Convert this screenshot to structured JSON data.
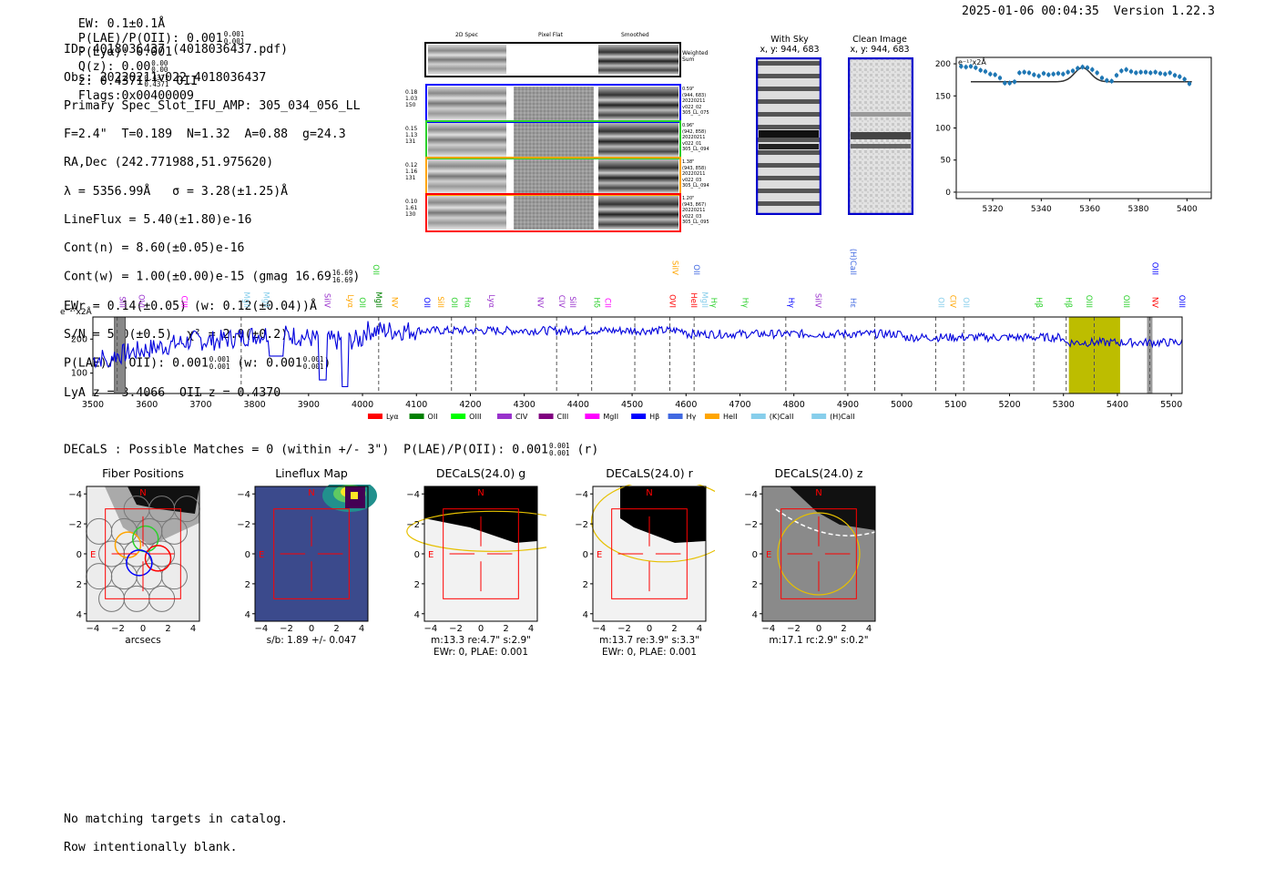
{
  "header": {
    "ew": "EW: 0.1±0.1Å",
    "plae_label": "P(LAE)/P(OII): 0.001",
    "plae_hi": "0.001",
    "plae_lo": "0.001",
    "plya": "P(Lyα): 0.001",
    "qz_label": "Q(z): 0.00",
    "qz_hi": "0.00",
    "qz_lo": "0.00",
    "z_label": "z: 0.4371",
    "z_hi": "0.4371",
    "z_lo": "0.4371",
    "z_line": "OII",
    "flags": "Flags:0x00400009",
    "datetime": "2025-01-06 00:04:35",
    "version": "Version 1.22.3"
  },
  "info": {
    "id": "ID: 4018036437 (4018036437.pdf)",
    "obs": "Obs: 20220211v022_4018036437",
    "primary": "Primary Spec_Slot_IFU_AMP: 305_034_056_LL",
    "params": "F=2.4\"  T=0.189  N=1.32  A=0.88  g=24.3",
    "radec": "RA,Dec (242.771988,51.975620)",
    "lambda": "λ = 5356.99Å   σ = 3.28(±1.25)Å",
    "lineflux": "LineFlux = 5.40(±1.80)e-16",
    "contn": "Cont(n) = 8.60(±0.05)e-16",
    "contw": "Cont(w) = 1.00(±0.00)e-15 (gmag 16.69",
    "contw_hi": "16.69",
    "contw_lo": "16.69",
    "ewr": "EWr = 0.14(±0.05) (w: 0.12(±0.04))Å",
    "sn": "S/N = 5.0(±0.5)  χ² = 2.0(±0.2)",
    "plae": "P(LAE)/P(OII): 0.001",
    "plae_hi": "0.001",
    "plae_lo": "0.001",
    "plae_w": "(w: 0.001",
    "plae_w_hi": "0.001",
    "plae_w_lo": "0.001",
    "lyaz": "LyA z = 3.4066  OII z = 0.4370"
  },
  "cutouts": {
    "col_2d": "2D Spec",
    "col_flat": "Pixel Flat",
    "col_smooth": "Smoothed",
    "weighted": "Weighted",
    "sum": "Sum",
    "rows": [
      {
        "left": [
          "0.18",
          "1.03",
          "150"
        ],
        "right": [
          "0.59\"",
          "(944, 683)",
          "20220211",
          "v022_02",
          "305_LL_075"
        ],
        "color": "#0000ff"
      },
      {
        "left": [
          "0.15",
          "1.13",
          "131"
        ],
        "right": [
          "0.96\"",
          "(942, 858)",
          "20220211",
          "v022_01",
          "305_LL_094"
        ],
        "color": "#2bd02b"
      },
      {
        "left": [
          "0.12",
          "1.16",
          "131"
        ],
        "right": [
          "1.38\"",
          "(943, 858)",
          "20220211",
          "v022_03",
          "305_LL_094"
        ],
        "color": "#ffa500"
      },
      {
        "left": [
          "0.10",
          "1.61",
          "130"
        ],
        "right": [
          "1.20\"",
          "(943, 867)",
          "20220211",
          "v022_03",
          "305_LL_095"
        ],
        "color": "#ff0000"
      }
    ]
  },
  "sky": {
    "with_sky": "With Sky",
    "with_sky_xy": "x, y: 944, 683",
    "clean": "Clean Image",
    "clean_xy": "x, y: 944, 683"
  },
  "zoom_chart": {
    "unit": "e⁻¹⁷x2Å",
    "xticks": [
      "5320",
      "5340",
      "5360",
      "5380",
      "5400"
    ],
    "yticks": [
      "200",
      "150",
      "100",
      "50",
      "0"
    ]
  },
  "spectrum": {
    "unit": "e⁻¹⁷x2Å",
    "xticks": [
      "3500",
      "3600",
      "3700",
      "3800",
      "3900",
      "4000",
      "4100",
      "4200",
      "4300",
      "4400",
      "4500",
      "4600",
      "4700",
      "4800",
      "4900",
      "5000",
      "5100",
      "5200",
      "5300",
      "5400",
      "5500"
    ],
    "yticks": [
      "200",
      "100"
    ],
    "legend": [
      {
        "label": "Lyα",
        "color": "#ff0000"
      },
      {
        "label": "OII",
        "color": "#008000"
      },
      {
        "label": "OIII",
        "color": "#00ff00"
      },
      {
        "label": "CIV",
        "color": "#9932cc"
      },
      {
        "label": "CIII",
        "color": "#800080"
      },
      {
        "label": "MgII",
        "color": "#ff00ff"
      },
      {
        "label": "Hβ",
        "color": "#0000ff"
      },
      {
        "label": "Hγ",
        "color": "#4169e1"
      },
      {
        "label": "HeII",
        "color": "#ffa500"
      },
      {
        "label": "(K)CaII",
        "color": "#87ceeb"
      },
      {
        "label": "(H)CaII",
        "color": "#87ceeb"
      }
    ],
    "line_labels": [
      {
        "t": "SiII",
        "w": 3545,
        "c": "#9932cc",
        "r": 1
      },
      {
        "t": "OVI",
        "w": 3580,
        "c": "#9932cc",
        "r": 1
      },
      {
        "t": "CIII",
        "w": 3660,
        "c": "#ff00ff",
        "r": 1
      },
      {
        "t": "MgII",
        "w": 3775,
        "c": "#87ceeb",
        "r": 1
      },
      {
        "t": "MgII",
        "w": 3812,
        "c": "#87ceeb",
        "r": 1
      },
      {
        "t": "SiIV",
        "w": 3925,
        "c": "#9932cc",
        "r": 1
      },
      {
        "t": "Lyα",
        "w": 3968,
        "c": "#ffa500",
        "r": 1
      },
      {
        "t": "OII",
        "w": 3990,
        "c": "#2bd02b",
        "r": 1
      },
      {
        "t": "MgII",
        "w": 4020,
        "c": "#008000",
        "r": 1
      },
      {
        "t": "NV",
        "w": 4050,
        "c": "#ffa500",
        "r": 1
      },
      {
        "t": "OII",
        "w": 4015,
        "c": "#2bd02b",
        "r": 0
      },
      {
        "t": "OII",
        "w": 4110,
        "c": "#0000ff",
        "r": 1
      },
      {
        "t": "SiII",
        "w": 4135,
        "c": "#ffa500",
        "r": 1
      },
      {
        "t": "OII",
        "w": 4160,
        "c": "#2bd02b",
        "r": 1
      },
      {
        "t": "Hα",
        "w": 4185,
        "c": "#2bd02b",
        "r": 1
      },
      {
        "t": "Lyα",
        "w": 4230,
        "c": "#9932cc",
        "r": 1
      },
      {
        "t": "NV",
        "w": 4320,
        "c": "#9932cc",
        "r": 1
      },
      {
        "t": "CIV",
        "w": 4360,
        "c": "#9932cc",
        "r": 1
      },
      {
        "t": "SiII",
        "w": 4380,
        "c": "#9932cc",
        "r": 1
      },
      {
        "t": "Hδ",
        "w": 4425,
        "c": "#2bd02b",
        "r": 1
      },
      {
        "t": "CII",
        "w": 4445,
        "c": "#ff00ff",
        "r": 1
      },
      {
        "t": "OVI",
        "w": 4565,
        "c": "#ff0000",
        "r": 1
      },
      {
        "t": "HeII",
        "w": 4605,
        "c": "#ff0000",
        "r": 1
      },
      {
        "t": "MgII",
        "w": 4625,
        "c": "#87ceeb",
        "r": 1
      },
      {
        "t": "Hγ",
        "w": 4642,
        "c": "#2bd02b",
        "r": 1
      },
      {
        "t": "Hγ",
        "w": 4700,
        "c": "#2bd02b",
        "r": 1
      },
      {
        "t": "SiIV",
        "w": 4570,
        "c": "#ffa500",
        "r": 0
      },
      {
        "t": "OII",
        "w": 4610,
        "c": "#4169e1",
        "r": 0
      },
      {
        "t": "Hγ",
        "w": 4785,
        "c": "#0000ff",
        "r": 1
      },
      {
        "t": "SiIV",
        "w": 4835,
        "c": "#9932cc",
        "r": 1
      },
      {
        "t": "Hε",
        "w": 4900,
        "c": "#4169e1",
        "r": 1
      },
      {
        "t": "(H)CaII",
        "w": 4900,
        "c": "#4169e1",
        "r": 0
      },
      {
        "t": "OII",
        "w": 5063,
        "c": "#87ceeb",
        "r": 1
      },
      {
        "t": "CIV",
        "w": 5085,
        "c": "#ffa500",
        "r": 1
      },
      {
        "t": "OII",
        "w": 5110,
        "c": "#87ceeb",
        "r": 1
      },
      {
        "t": "Hβ",
        "w": 5245,
        "c": "#2bd02b",
        "r": 1
      },
      {
        "t": "Hβ",
        "w": 5300,
        "c": "#2bd02b",
        "r": 1
      },
      {
        "t": "OIII",
        "w": 5338,
        "c": "#2bd02b",
        "r": 1
      },
      {
        "t": "OIII",
        "w": 5407,
        "c": "#2bd02b",
        "r": 1
      },
      {
        "t": "NV",
        "w": 5460,
        "c": "#ff0000",
        "r": 1
      },
      {
        "t": "OIII",
        "w": 5510,
        "c": "#0000ff",
        "r": 1
      },
      {
        "t": "OIII",
        "w": 5460,
        "c": "#0000ff",
        "r": 0
      }
    ]
  },
  "decals": {
    "title": "DECaLS : Possible Matches = 0 (within +/- 3\")  P(LAE)/P(OII): 0.001",
    "title_hi": "0.001",
    "title_lo": "0.001",
    "title_suffix": "(r)",
    "panels": [
      {
        "title": "Fiber Positions",
        "caption1": "arcsecs",
        "caption2": ""
      },
      {
        "title": "Lineflux Map",
        "caption1": "s/b: 1.89 +/- 0.047",
        "caption2": ""
      },
      {
        "title": "DECaLS(24.0) g",
        "caption1": "m:13.3  re:4.7\"  s:2.9\"",
        "caption2": "EWr: 0, PLAE: 0.001"
      },
      {
        "title": "DECaLS(24.0) r",
        "caption1": "m:13.7  re:3.9\"  s:3.3\"",
        "caption2": "EWr: 0, PLAE: 0.001"
      },
      {
        "title": "DECaLS(24.0) z",
        "caption1": "m:17.1 rc:2.9\"  s:0.2\"",
        "caption2": ""
      }
    ],
    "axis_ticks": [
      "−4",
      "−2",
      "0",
      "2",
      "4"
    ],
    "north": "N",
    "east": "E"
  },
  "footer": {
    "line1": "No matching targets in catalog.",
    "line2": "Row intentionally blank."
  }
}
